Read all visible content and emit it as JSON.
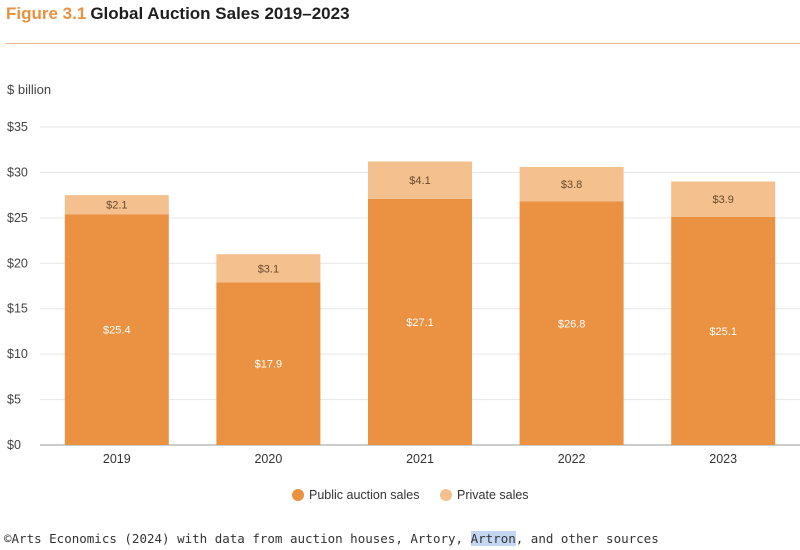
{
  "figure": {
    "number": "Figure 3.1",
    "title": "Global Auction Sales 2019–2023"
  },
  "source": {
    "before": "©Arts Economics (2024) with data from auction houses, Artory, ",
    "highlighted": "Artron",
    "after": ", and other sources"
  },
  "colors": {
    "public": "#ea9142",
    "private": "#f3c08e",
    "accent": "#e8913f",
    "rule": "#f0b98a"
  },
  "chart_data": {
    "type": "bar",
    "stacked": true,
    "title": "Global Auction Sales 2019–2023",
    "ylabel": "$ billion",
    "xlabel": "",
    "ylim": [
      0,
      35
    ],
    "yticks": [
      0,
      5,
      10,
      15,
      20,
      25,
      30,
      35
    ],
    "ytick_labels": [
      "$0",
      "$5",
      "$10",
      "$15",
      "$20",
      "$25",
      "$30",
      "$35"
    ],
    "grid": true,
    "legend_position": "bottom-center",
    "categories": [
      "2019",
      "2020",
      "2021",
      "2022",
      "2023"
    ],
    "series": [
      {
        "name": "Public auction sales",
        "color": "#ea9142",
        "values": [
          25.4,
          17.9,
          27.1,
          26.8,
          25.1
        ],
        "labels": [
          "$25.4",
          "$17.9",
          "$27.1",
          "$26.8",
          "$25.1"
        ]
      },
      {
        "name": "Private sales",
        "color": "#f3c08e",
        "values": [
          2.1,
          3.1,
          4.1,
          3.8,
          3.9
        ],
        "labels": [
          "$2.1",
          "$3.1",
          "$4.1",
          "$3.8",
          "$3.9"
        ]
      }
    ]
  }
}
